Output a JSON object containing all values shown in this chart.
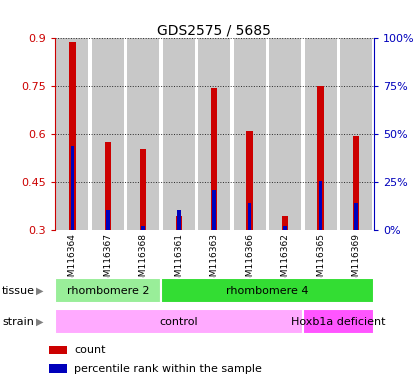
{
  "title": "GDS2575 / 5685",
  "samples": [
    "GSM116364",
    "GSM116367",
    "GSM116368",
    "GSM116361",
    "GSM116363",
    "GSM116366",
    "GSM116362",
    "GSM116365",
    "GSM116369"
  ],
  "red_values": [
    0.89,
    0.575,
    0.555,
    0.345,
    0.745,
    0.61,
    0.345,
    0.75,
    0.595
  ],
  "blue_values": [
    0.565,
    0.365,
    0.315,
    0.365,
    0.425,
    0.385,
    0.315,
    0.455,
    0.385
  ],
  "red_base": 0.3,
  "ylim": [
    0.3,
    0.9
  ],
  "yticks": [
    0.3,
    0.45,
    0.6,
    0.75,
    0.9
  ],
  "ytick_labels": [
    "0.3",
    "0.45",
    "0.6",
    "0.75",
    "0.9"
  ],
  "right_ytick_labels": [
    "0%",
    "25%",
    "50%",
    "75%",
    "100%"
  ],
  "tissue_groups": [
    {
      "label": "rhombomere 2",
      "start": 0,
      "end": 3,
      "color": "#99EE99"
    },
    {
      "label": "rhombomere 4",
      "start": 3,
      "end": 9,
      "color": "#33DD33"
    }
  ],
  "strain_groups": [
    {
      "label": "control",
      "start": 0,
      "end": 7,
      "color": "#FFAAFF"
    },
    {
      "label": "Hoxb1a deficient",
      "start": 7,
      "end": 9,
      "color": "#FF55FF"
    }
  ],
  "red_color": "#CC0000",
  "blue_color": "#0000BB",
  "bar_bg_color": "#C8C8C8",
  "grid_color": "#000000",
  "left_tick_color": "#CC0000",
  "right_tick_color": "#0000BB",
  "legend_items": [
    {
      "label": "count",
      "color": "#CC0000"
    },
    {
      "label": "percentile rank within the sample",
      "color": "#0000BB"
    }
  ]
}
